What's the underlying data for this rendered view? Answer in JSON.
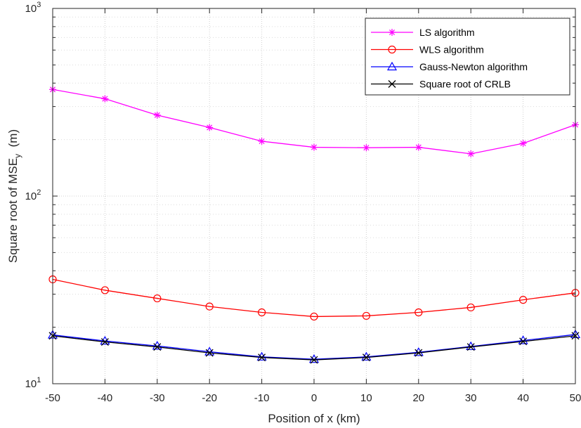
{
  "chart_data": {
    "type": "line",
    "title": "",
    "xlabel": "Position of x (km)",
    "ylabel": "Square root of MSE",
    "ylabel_subscript": "y",
    "ylabel_suffix": "  (m)",
    "x_scale": "linear",
    "y_scale": "log",
    "xlim": [
      -50,
      50
    ],
    "ylim": [
      10,
      1000
    ],
    "x_ticks": [
      -50,
      -40,
      -30,
      -20,
      -10,
      0,
      10,
      20,
      30,
      40,
      50
    ],
    "x_tick_labels": [
      "-50",
      "-40",
      "-30",
      "-20",
      "-10",
      "0",
      "10",
      "20",
      "30",
      "40",
      "50"
    ],
    "y_ticks": [
      10,
      100,
      1000
    ],
    "y_tick_labels": [
      {
        "base": "10",
        "exp": "1"
      },
      {
        "base": "10",
        "exp": "2"
      },
      {
        "base": "10",
        "exp": "3"
      }
    ],
    "grid": true,
    "minor_grid": true,
    "legend_position": "top-right",
    "x": [
      -50,
      -40,
      -30,
      -20,
      -10,
      0,
      10,
      20,
      30,
      40,
      50
    ],
    "series": [
      {
        "name": "LS algorithm",
        "color": "#ff00ff",
        "marker": "asterisk",
        "values": [
          370,
          330,
          270,
          232,
          196,
          182,
          181,
          182,
          168,
          191,
          240
        ]
      },
      {
        "name": "WLS algorithm",
        "color": "#ff0000",
        "marker": "circle",
        "values": [
          36,
          31.5,
          28.5,
          25.8,
          24,
          22.8,
          23,
          24,
          25.5,
          28,
          30.5
        ]
      },
      {
        "name": "Gauss-Newton algorithm",
        "color": "#0000ff",
        "marker": "triangle",
        "values": [
          18.2,
          16.9,
          15.9,
          14.8,
          13.9,
          13.5,
          13.9,
          14.7,
          15.8,
          17,
          18.3
        ]
      },
      {
        "name": "Square root of CRLB",
        "color": "#000000",
        "marker": "x",
        "values": [
          18,
          16.7,
          15.7,
          14.6,
          13.8,
          13.4,
          13.8,
          14.6,
          15.7,
          16.8,
          18
        ]
      }
    ]
  }
}
